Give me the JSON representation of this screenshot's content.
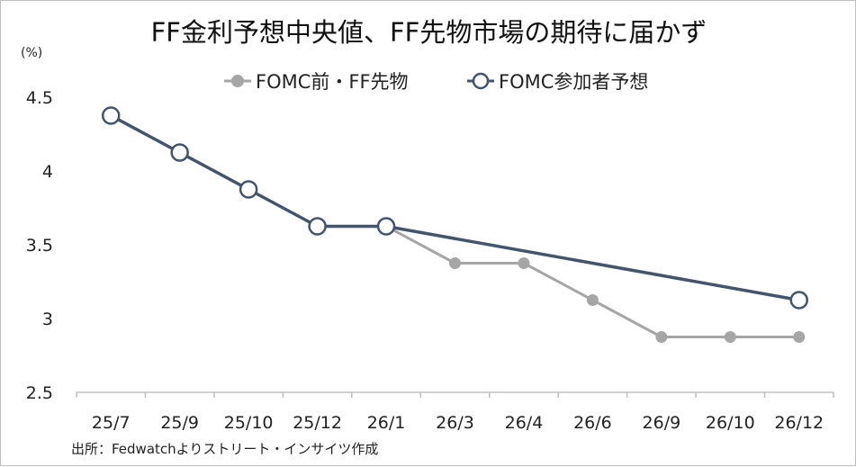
{
  "chart_data": {
    "type": "line",
    "title": "FF金利予想中央値、FF先物市場の期待に届かず",
    "unit_label": "(%)",
    "source": "出所：Fedwatchよりストリート・インサイツ作成",
    "categories": [
      "25/7",
      "25/9",
      "25/10",
      "25/12",
      "26/1",
      "26/3",
      "26/4",
      "26/6",
      "26/9",
      "26/10",
      "26/12"
    ],
    "ylim": [
      2.5,
      4.5
    ],
    "yticks": [
      "4.5",
      "4",
      "3.5",
      "3",
      "2.5"
    ],
    "legend_position": "top-center",
    "grid": false,
    "series": [
      {
        "name": "FOMC前・FF先物",
        "color": "#a6a6a6",
        "marker": "filled-circle",
        "values": [
          null,
          null,
          null,
          null,
          3.625,
          3.375,
          3.375,
          3.125,
          2.875,
          2.875,
          2.875
        ]
      },
      {
        "name": "FOMC参加者予想",
        "color": "#44546a",
        "marker": "hollow-circle",
        "values": [
          4.375,
          4.125,
          3.875,
          3.625,
          3.625,
          null,
          null,
          null,
          null,
          null,
          3.125
        ]
      }
    ]
  }
}
